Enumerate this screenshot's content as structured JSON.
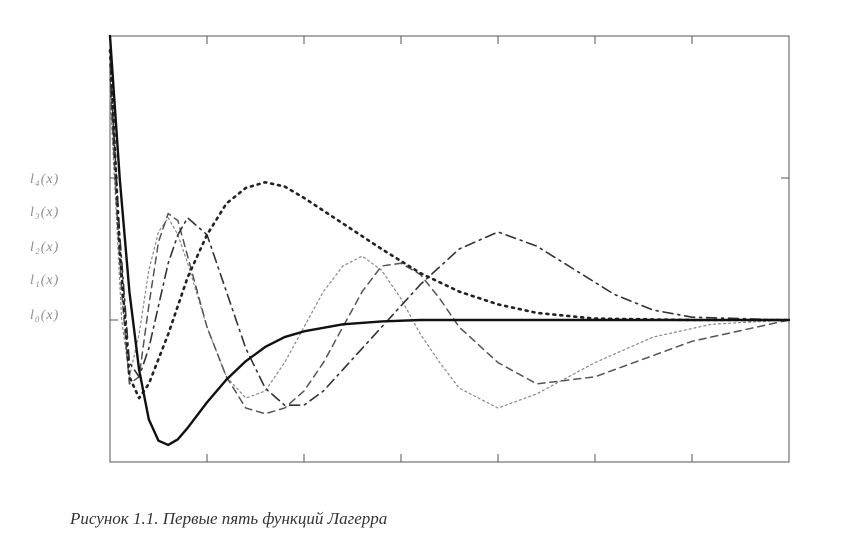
{
  "caption": "Рисунок 1.1. Первые пять функций Лагерра",
  "legend": {
    "labels": [
      "l₄(x)",
      "l₃(x)",
      "l₂(x)",
      "l₁(x)",
      "l₀(x)"
    ]
  },
  "chart_data": {
    "type": "line",
    "title": "",
    "xlabel": "",
    "ylabel": "",
    "xlim": [
      0,
      35
    ],
    "ylim": [
      -1,
      2
    ],
    "x_ticks": [
      0,
      5,
      10,
      15,
      20,
      25,
      30,
      35
    ],
    "y_ticks": [
      0,
      1
    ],
    "grid": false,
    "legend_placement": "left",
    "series": [
      {
        "name": "l₀(x)",
        "style": "solid",
        "color": "#111111",
        "x": [
          0,
          0.5,
          1,
          1.5,
          2,
          2.5,
          3,
          3.5,
          4,
          5,
          6,
          7,
          8,
          9,
          10,
          12,
          14,
          16,
          20,
          25,
          30,
          35
        ],
        "y": [
          2.0,
          1.0,
          0.2,
          -0.35,
          -0.7,
          -0.85,
          -0.88,
          -0.84,
          -0.76,
          -0.58,
          -0.42,
          -0.29,
          -0.19,
          -0.12,
          -0.08,
          -0.03,
          -0.01,
          0.0,
          0.0,
          0.0,
          0.0,
          0.0
        ]
      },
      {
        "name": "l₁(x)",
        "style": "dotted",
        "color": "#222222",
        "x": [
          0,
          0.5,
          1,
          1.5,
          2,
          3,
          4,
          5,
          6,
          7,
          8,
          9,
          10,
          12,
          14,
          16,
          18,
          20,
          22,
          25,
          30,
          35
        ],
        "y": [
          1.9,
          0.5,
          -0.4,
          -0.55,
          -0.45,
          -0.1,
          0.3,
          0.6,
          0.82,
          0.93,
          0.97,
          0.94,
          0.86,
          0.68,
          0.5,
          0.33,
          0.2,
          0.11,
          0.05,
          0.01,
          0.0,
          0.0
        ]
      },
      {
        "name": "l₂(x)",
        "style": "dash-dot",
        "color": "#333333",
        "x": [
          0,
          0.5,
          1,
          1.5,
          2,
          2.5,
          3,
          3.5,
          4,
          5,
          6,
          7,
          8,
          9,
          10,
          11,
          12,
          13,
          14,
          15,
          16,
          18,
          20,
          22,
          24,
          26,
          28,
          30,
          35
        ],
        "y": [
          1.8,
          0.6,
          -0.3,
          -0.4,
          -0.2,
          0.1,
          0.4,
          0.6,
          0.72,
          0.6,
          0.2,
          -0.2,
          -0.48,
          -0.6,
          -0.6,
          -0.5,
          -0.35,
          -0.2,
          -0.05,
          0.1,
          0.25,
          0.5,
          0.62,
          0.52,
          0.35,
          0.18,
          0.07,
          0.02,
          0.0
        ]
      },
      {
        "name": "l₃(x)",
        "style": "dashed",
        "color": "#555555",
        "x": [
          0,
          0.3,
          0.6,
          1,
          1.5,
          2,
          2.5,
          3,
          3.5,
          4,
          4.5,
          5,
          6,
          7,
          8,
          9,
          10,
          11,
          12,
          13,
          14,
          15,
          16,
          17,
          18,
          20,
          22,
          25,
          30,
          35
        ],
        "y": [
          1.7,
          0.9,
          0.2,
          -0.45,
          -0.4,
          0.1,
          0.55,
          0.75,
          0.7,
          0.45,
          0.2,
          -0.05,
          -0.4,
          -0.62,
          -0.66,
          -0.62,
          -0.5,
          -0.3,
          -0.05,
          0.2,
          0.38,
          0.4,
          0.32,
          0.15,
          -0.05,
          -0.3,
          -0.45,
          -0.4,
          -0.15,
          0.0
        ]
      },
      {
        "name": "l₄(x)",
        "style": "dotted-light",
        "color": "#888888",
        "x": [
          0,
          0.3,
          0.6,
          1,
          1.5,
          2,
          2.5,
          3,
          3.5,
          4,
          5,
          6,
          7,
          8,
          9,
          10,
          11,
          12,
          13,
          14,
          15,
          16,
          17,
          18,
          20,
          22,
          25,
          28,
          31,
          35
        ],
        "y": [
          1.6,
          0.8,
          0.0,
          -0.4,
          -0.1,
          0.35,
          0.62,
          0.72,
          0.6,
          0.4,
          -0.05,
          -0.4,
          -0.55,
          -0.5,
          -0.3,
          -0.05,
          0.2,
          0.38,
          0.45,
          0.35,
          0.15,
          -0.1,
          -0.3,
          -0.48,
          -0.62,
          -0.52,
          -0.3,
          -0.12,
          -0.03,
          0.0
        ]
      }
    ]
  }
}
